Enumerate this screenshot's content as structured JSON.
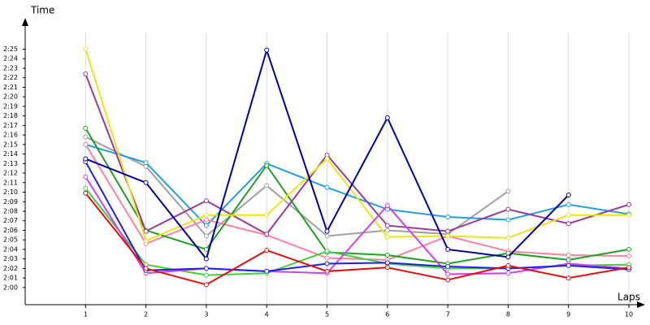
{
  "chart_data": {
    "type": "line",
    "y_label": "Time",
    "x_label": "Laps",
    "x": [
      1,
      2,
      3,
      4,
      5,
      6,
      7,
      8,
      9,
      10
    ],
    "xlim": [
      0,
      10.25
    ],
    "xticks": [
      1,
      2,
      3,
      4,
      5,
      6,
      7,
      8,
      9,
      10
    ],
    "ylim": [
      118.2,
      147.6
    ],
    "yticks": [
      {
        "value": 120,
        "label": "2:00"
      },
      {
        "value": 121,
        "label": "2:01"
      },
      {
        "value": 122,
        "label": "2:02"
      },
      {
        "value": 123,
        "label": "2:03"
      },
      {
        "value": 124,
        "label": "2:04"
      },
      {
        "value": 125,
        "label": "2:05"
      },
      {
        "value": 126,
        "label": "2:06"
      },
      {
        "value": 127,
        "label": "2:07"
      },
      {
        "value": 128,
        "label": "2:08"
      },
      {
        "value": 129,
        "label": "2:09"
      },
      {
        "value": 130,
        "label": "2:10"
      },
      {
        "value": 131,
        "label": "2:11"
      },
      {
        "value": 132,
        "label": "2:12"
      },
      {
        "value": 133,
        "label": "2:13"
      },
      {
        "value": 134,
        "label": "2:14"
      },
      {
        "value": 135,
        "label": "2:15"
      },
      {
        "value": 136,
        "label": "2:16"
      },
      {
        "value": 137,
        "label": "2:17"
      },
      {
        "value": 138,
        "label": "2:18"
      },
      {
        "value": 139,
        "label": "2:19"
      },
      {
        "value": 140,
        "label": "2:20"
      },
      {
        "value": 141,
        "label": "2:21"
      },
      {
        "value": 142,
        "label": "2:22"
      },
      {
        "value": 143,
        "label": "2:23"
      },
      {
        "value": 144,
        "label": "2:24"
      },
      {
        "value": 145,
        "label": "2:25"
      }
    ],
    "vertical_grid": true,
    "series": [
      {
        "color": "#a0a0a0",
        "values": [
          135.8,
          132.7,
          125.4,
          130.7,
          125.4,
          126,
          125.6,
          130.1,
          null,
          null
        ]
      },
      {
        "color": "#20a0e0",
        "values": [
          135,
          133.1,
          126.5,
          133,
          130.5,
          128.2,
          127.4,
          127.1,
          128.7,
          127.7
        ]
      },
      {
        "color": "#ff80a0",
        "values": [
          135,
          124.6,
          127.1,
          125.5,
          123.1,
          122.9,
          125.4,
          123.8,
          123.4,
          123.3
        ]
      },
      {
        "color": "#20a020",
        "values": [
          136.7,
          126,
          124,
          132.8,
          123.7,
          123.4,
          122.5,
          123.6,
          122.9,
          124
        ]
      },
      {
        "color": "#9a3a9a",
        "values": [
          142.4,
          125.9,
          129.1,
          125.6,
          133.9,
          126.5,
          125.9,
          128.2,
          126.7,
          128.7
        ]
      },
      {
        "color": "#e6e619",
        "values": [
          145,
          124.9,
          127.6,
          127.6,
          133.5,
          125.3,
          125.4,
          125.2,
          127.6,
          127.6
        ]
      },
      {
        "color": "#40d040",
        "values": [
          130.4,
          122.4,
          121.3,
          121.5,
          123.8,
          122.5,
          122,
          122,
          122.3,
          122.4
        ]
      },
      {
        "color": "#d040f0",
        "values": [
          131.6,
          121.5,
          122,
          121.7,
          121.5,
          128.6,
          121.4,
          121.5,
          122.5,
          122
        ]
      },
      {
        "color": "#2020e0",
        "values": [
          133.2,
          121.8,
          122,
          121.7,
          122.5,
          122.6,
          122.2,
          122,
          122.3,
          121.9
        ]
      },
      {
        "color": "#e01010",
        "values": [
          129.9,
          122,
          120.3,
          123.9,
          121.7,
          122.1,
          120.8,
          122.3,
          121,
          122.1
        ]
      },
      {
        "color": "#0000a0",
        "values": [
          133.5,
          131,
          123,
          144.9,
          125.9,
          137.8,
          124,
          123.2,
          129.7,
          null
        ]
      }
    ]
  }
}
